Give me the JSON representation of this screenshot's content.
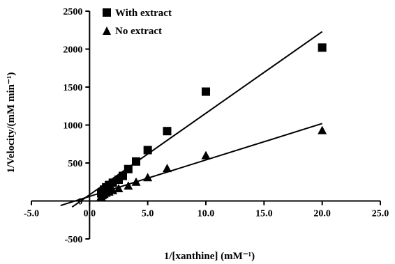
{
  "chart_data": {
    "type": "scatter",
    "title": "",
    "xlabel": "1/[xanthine] (mM⁻¹)",
    "ylabel": "1/Velocity/(mM min⁻¹)",
    "xlim": [
      -5.0,
      25.0
    ],
    "ylim": [
      -500,
      2500
    ],
    "x_ticks": [
      -5.0,
      0.0,
      5.0,
      10.0,
      15.0,
      20.0,
      25.0
    ],
    "x_tick_labels": [
      "-5.0",
      "0.0",
      "5.0",
      "10.0",
      "15.0",
      "20.0",
      "25.0"
    ],
    "y_ticks": [
      -500,
      0,
      500,
      1000,
      1500,
      2000,
      2500
    ],
    "y_tick_labels": [
      "-500",
      "0",
      "500",
      "1000",
      "1500",
      "2000",
      "2500"
    ],
    "grid": false,
    "legend_position": "top-left",
    "series": [
      {
        "name": "With extract",
        "marker": "square",
        "color": "#000000",
        "x": [
          1.0,
          1.11,
          1.25,
          1.43,
          1.67,
          2.0,
          2.5,
          2.86,
          3.33,
          4.0,
          5.0,
          6.67,
          10.0,
          20.0
        ],
        "y": [
          100,
          120,
          150,
          180,
          210,
          240,
          280,
          330,
          420,
          520,
          670,
          920,
          1440,
          2020
        ],
        "fit_line": {
          "x": [
            -1.5,
            20.0
          ],
          "y": [
            -80,
            2230
          ]
        }
      },
      {
        "name": "No extract",
        "marker": "triangle",
        "color": "#000000",
        "x": [
          1.0,
          1.11,
          1.25,
          1.43,
          1.67,
          2.0,
          2.5,
          3.33,
          4.0,
          5.0,
          6.67,
          10.0,
          20.0
        ],
        "y": [
          60,
          75,
          90,
          105,
          120,
          140,
          165,
          200,
          250,
          310,
          430,
          600,
          930
        ],
        "fit_line": {
          "x": [
            -2.5,
            20.0
          ],
          "y": [
            -60,
            1020
          ]
        }
      }
    ]
  }
}
